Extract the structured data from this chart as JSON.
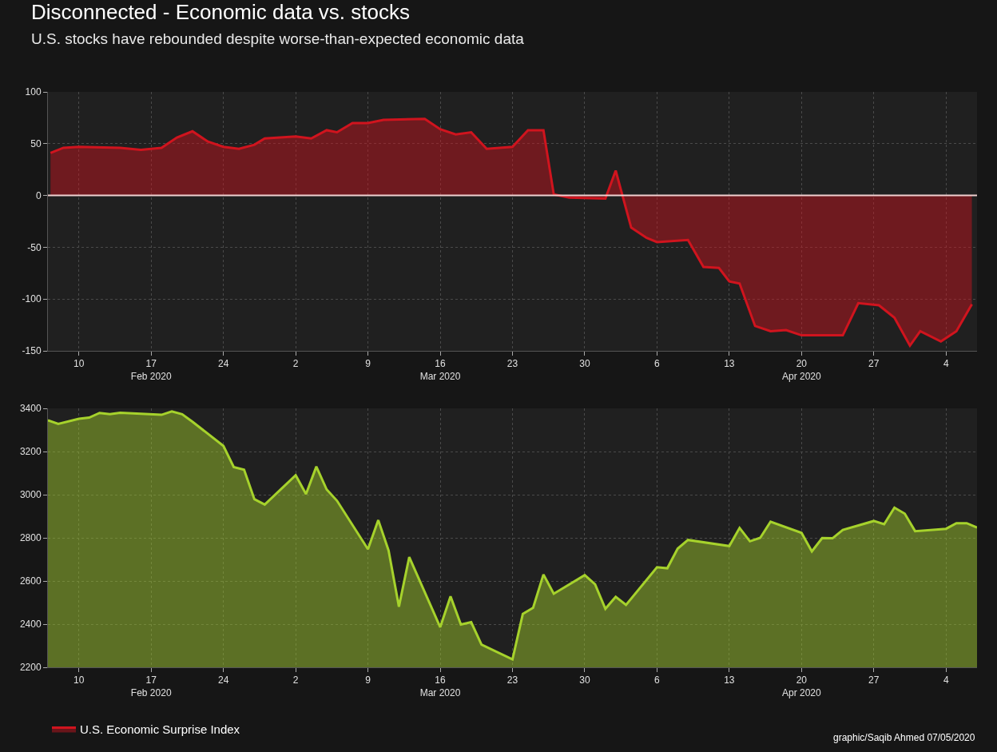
{
  "chart_data": [
    {
      "type": "area",
      "title": "Disconnected - Economic data vs. stocks",
      "subtitle": "U.S. stocks have rebounded despite worse-than-expected economic data",
      "series": [
        {
          "name": "U.S. Economic Surprise Index",
          "color": "#d0141e",
          "x": [
            "2020-02-07T06:00",
            "2020-02-08T12:00",
            "2020-02-10",
            "2020-02-14",
            "2020-02-16",
            "2020-02-18",
            "2020-02-19T12:00",
            "2020-02-21",
            "2020-02-22T12:00",
            "2020-02-24",
            "2020-02-25T12:00",
            "2020-02-27",
            "2020-02-28",
            "2020-03-02",
            "2020-03-03T12:00",
            "2020-03-05",
            "2020-03-06",
            "2020-03-07T12:00",
            "2020-03-09",
            "2020-03-10T12:00",
            "2020-03-14T12:00",
            "2020-03-16",
            "2020-03-17T12:00",
            "2020-03-19",
            "2020-03-20T12:00",
            "2020-03-23",
            "2020-03-24T12:00",
            "2020-03-26",
            "2020-03-27",
            "2020-03-28T12:00",
            "2020-04-01",
            "2020-04-02",
            "2020-04-03T12:00",
            "2020-04-05",
            "2020-04-06",
            "2020-04-09",
            "2020-04-10T12:00",
            "2020-04-12",
            "2020-04-13",
            "2020-04-14",
            "2020-04-15T12:00",
            "2020-04-17",
            "2020-04-18T12:00",
            "2020-04-20",
            "2020-04-24",
            "2020-04-25T12:00",
            "2020-04-27T12:00",
            "2020-04-29",
            "2020-04-30T12:00",
            "2020-05-01T12:00",
            "2020-05-03T12:00",
            "2020-05-05",
            "2020-05-06T12:00"
          ],
          "values": [
            41,
            46,
            47,
            46,
            44,
            46,
            56,
            62,
            52,
            47,
            45,
            49,
            55,
            57,
            55,
            63,
            61,
            70,
            70,
            73,
            74,
            64,
            59,
            61,
            45,
            47,
            63,
            63,
            1,
            -2,
            -3,
            24,
            -31,
            -41,
            -45,
            -43,
            -69,
            -70,
            -83,
            -85,
            -126,
            -131,
            -130,
            -135,
            -135,
            -104,
            -106,
            -118,
            -145,
            -131,
            -141,
            -131,
            -105
          ]
        }
      ],
      "xlim": [
        "2020-02-07",
        "2020-05-07"
      ],
      "xticks": [
        {
          "value": "2020-02-10",
          "label": "10"
        },
        {
          "value": "2020-02-17",
          "label": "17\nFeb 2020"
        },
        {
          "value": "2020-02-24",
          "label": "24"
        },
        {
          "value": "2020-03-02",
          "label": "2"
        },
        {
          "value": "2020-03-09",
          "label": "9"
        },
        {
          "value": "2020-03-16",
          "label": "16\nMar 2020"
        },
        {
          "value": "2020-03-23",
          "label": "23"
        },
        {
          "value": "2020-03-30",
          "label": "30"
        },
        {
          "value": "2020-04-06",
          "label": "6"
        },
        {
          "value": "2020-04-13",
          "label": "13"
        },
        {
          "value": "2020-04-20",
          "label": "20\nApr 2020"
        },
        {
          "value": "2020-04-27",
          "label": "27"
        },
        {
          "value": "2020-05-04",
          "label": "4"
        }
      ],
      "ylim": [
        -150,
        100
      ],
      "yticks": [
        -150,
        -100,
        -50,
        0,
        50,
        100
      ],
      "ref_lines": [
        {
          "axis": "y",
          "value": 0,
          "color": "#f0d0d0"
        }
      ],
      "grid": true,
      "legend": "bottom left",
      "marker": "none",
      "line_style": "solid"
    },
    {
      "type": "area",
      "series": [
        {
          "color": "#a6d22c",
          "x": [
            "2020-02-07",
            "2020-02-08",
            "2020-02-10",
            "2020-02-11",
            "2020-02-12",
            "2020-02-13",
            "2020-02-14",
            "2020-02-18",
            "2020-02-19",
            "2020-02-20",
            "2020-02-21",
            "2020-02-24",
            "2020-02-25",
            "2020-02-26",
            "2020-02-27",
            "2020-02-28",
            "2020-03-02",
            "2020-03-03",
            "2020-03-04",
            "2020-03-05",
            "2020-03-06",
            "2020-03-09",
            "2020-03-10",
            "2020-03-11",
            "2020-03-12",
            "2020-03-13",
            "2020-03-16",
            "2020-03-17",
            "2020-03-18",
            "2020-03-19",
            "2020-03-20",
            "2020-03-23",
            "2020-03-24",
            "2020-03-25",
            "2020-03-26",
            "2020-03-27",
            "2020-03-30",
            "2020-03-31",
            "2020-04-01",
            "2020-04-02",
            "2020-04-03",
            "2020-04-06",
            "2020-04-07",
            "2020-04-08",
            "2020-04-09",
            "2020-04-13",
            "2020-04-14",
            "2020-04-15",
            "2020-04-16",
            "2020-04-17",
            "2020-04-20",
            "2020-04-21",
            "2020-04-22",
            "2020-04-23",
            "2020-04-24",
            "2020-04-27",
            "2020-04-28",
            "2020-04-29",
            "2020-04-30",
            "2020-05-01",
            "2020-05-04",
            "2020-05-05",
            "2020-05-06",
            "2020-05-07"
          ],
          "values": [
            3345,
            3328,
            3352,
            3357,
            3379,
            3373,
            3380,
            3370,
            3386,
            3373,
            3338,
            3226,
            3128,
            3116,
            2979,
            2954,
            3090,
            3003,
            3130,
            3024,
            2972,
            2747,
            2882,
            2741,
            2481,
            2711,
            2386,
            2529,
            2398,
            2409,
            2305,
            2237,
            2447,
            2476,
            2630,
            2541,
            2627,
            2585,
            2471,
            2527,
            2489,
            2664,
            2659,
            2750,
            2790,
            2762,
            2846,
            2784,
            2800,
            2875,
            2823,
            2737,
            2799,
            2798,
            2837,
            2878,
            2863,
            2940,
            2912,
            2831,
            2842,
            2868,
            2868,
            2848
          ]
        }
      ],
      "xlim": [
        "2020-02-07",
        "2020-05-07"
      ],
      "xticks": [
        {
          "value": "2020-02-10",
          "label": "10"
        },
        {
          "value": "2020-02-17",
          "label": "17\nFeb 2020"
        },
        {
          "value": "2020-02-24",
          "label": "24"
        },
        {
          "value": "2020-03-02",
          "label": "2"
        },
        {
          "value": "2020-03-09",
          "label": "9"
        },
        {
          "value": "2020-03-16",
          "label": "16\nMar 2020"
        },
        {
          "value": "2020-03-23",
          "label": "23"
        },
        {
          "value": "2020-03-30",
          "label": "30"
        },
        {
          "value": "2020-04-06",
          "label": "6"
        },
        {
          "value": "2020-04-13",
          "label": "13"
        },
        {
          "value": "2020-04-20",
          "label": "20\nApr 2020"
        },
        {
          "value": "2020-04-27",
          "label": "27"
        },
        {
          "value": "2020-05-04",
          "label": "4"
        }
      ],
      "ylim": [
        2200,
        3400
      ],
      "yticks": [
        2200,
        2400,
        2600,
        2800,
        3000,
        3200,
        3400
      ],
      "grid": true,
      "marker": "none",
      "line_style": "solid",
      "annotations": [
        "graphic/Saqib Ahmed 07/05/2020"
      ]
    }
  ]
}
